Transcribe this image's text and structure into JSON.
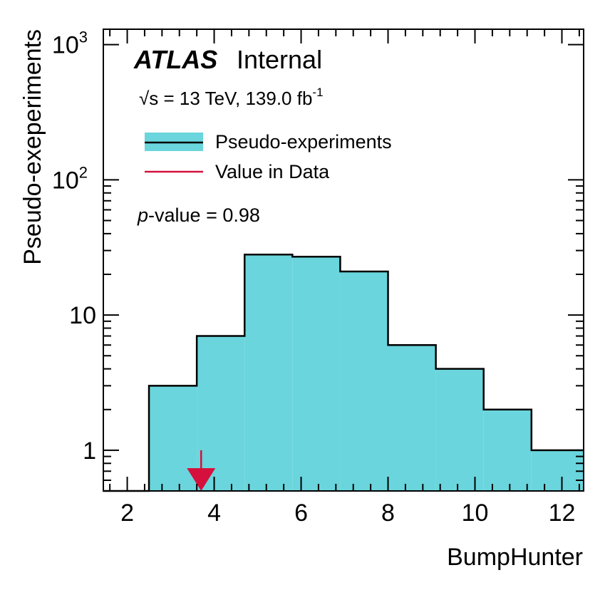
{
  "chart_data": {
    "type": "histogram",
    "experiment_label": "ATLAS",
    "status_label": "Internal",
    "energy_label": {
      "sqrt_symbol": "√",
      "text": "s = 13 TeV, 139.0 fb",
      "superscript": "-1"
    },
    "pvalue_label": {
      "p": "p",
      "rest": "-value = 0.98"
    },
    "xlabel": "BumpHunter",
    "ylabel": "Pseudo-exeperiments",
    "xlim": [
      1.45,
      12.5
    ],
    "ylim": [
      0.5,
      1300
    ],
    "yscale": "log",
    "xticks": [
      2,
      4,
      6,
      8,
      10,
      12
    ],
    "yticks": [
      {
        "value": 1,
        "label": "1"
      },
      {
        "value": 10,
        "label": "10"
      },
      {
        "value": 100,
        "base": "10",
        "exp": "2"
      },
      {
        "value": 1000,
        "base": "10",
        "exp": "3"
      }
    ],
    "series": [
      {
        "name": "Pseudo-experiments",
        "fill_color": "#6ad5dc",
        "line_color": "#000000",
        "bin_edges": [
          2.5,
          3.6,
          4.7,
          5.8,
          6.9,
          8.0,
          9.1,
          10.2,
          11.3,
          12.5
        ],
        "counts": [
          3,
          7,
          28,
          27,
          21,
          6,
          4,
          2,
          1
        ]
      },
      {
        "name": "Value in Data",
        "line_color": "#d6103c",
        "value": 3.7
      }
    ],
    "legend_position": "top-left",
    "grid": false
  }
}
